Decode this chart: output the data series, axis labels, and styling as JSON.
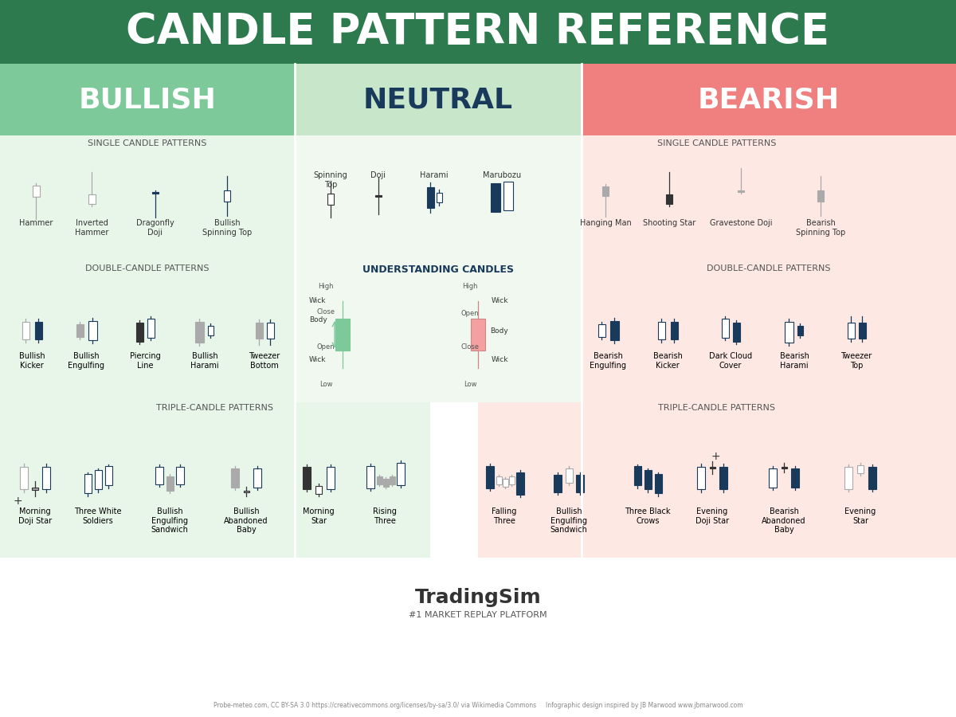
{
  "title": "CANDLE PATTERN REFERENCE",
  "title_bg": "#2d7a4f",
  "title_color": "#ffffff",
  "bullish_color": "#7dc99a",
  "neutral_color": "#c8e6c9",
  "bearish_color": "#f08080",
  "bullish_light": "#e8f5e9",
  "bearish_light": "#fde8e4",
  "bullish_label": "BULLISH",
  "neutral_label": "NEUTRAL",
  "bearish_label": "BEARISH",
  "dark_navy": "#1a3a5c",
  "candle_green": "#7dc99a",
  "candle_blue": "#1a3a5c",
  "candle_white": "#ffffff",
  "candle_gray": "#aaaaaa",
  "candle_pink": "#f4a0a0",
  "footer_text": "Probe-meteo.com, CC BY-SA 3.0 https://creativecommons.org/licenses/by-sa/3.0/ via Wikimedia Commons     Infographic design inspired by JB Marwood www.jbmarwood.com"
}
